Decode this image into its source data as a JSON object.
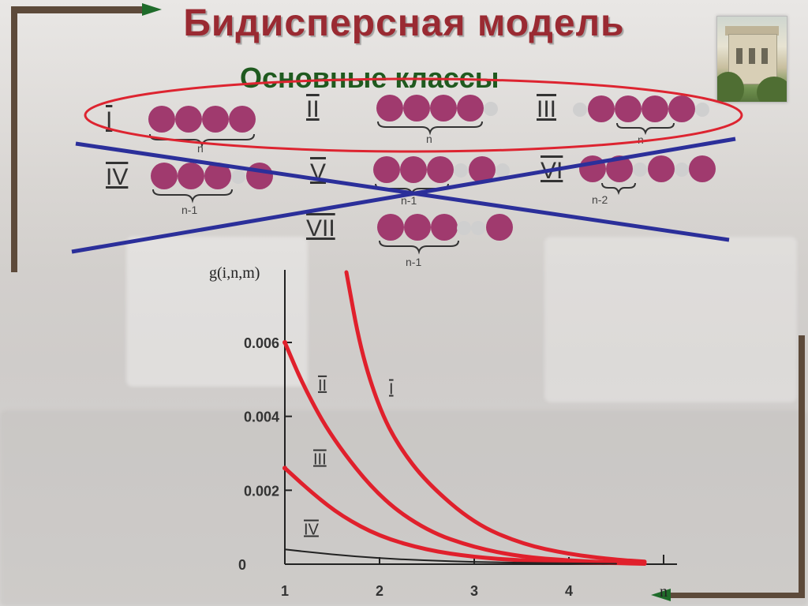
{
  "slide": {
    "title": "Бидисперсная модель",
    "subtitle": "Основные классы"
  },
  "molecules": {
    "classes": [
      {
        "label": "I",
        "chain": "n"
      },
      {
        "label": "II",
        "chain": "n"
      },
      {
        "label": "III",
        "chain": "n"
      },
      {
        "label": "IV",
        "chain": "n-1"
      },
      {
        "label": "V",
        "chain": "n-1"
      },
      {
        "label": "VI",
        "chain": "n-2"
      },
      {
        "label": "VII",
        "chain": "n-1"
      }
    ],
    "colors": {
      "bead": "#a03a6e",
      "small_bead": "#cfcfcf",
      "ellipse": "#dd2430",
      "cross_lines": "#2b2f9a"
    }
  },
  "chart_data": {
    "type": "line",
    "ylabel": "g(i,n,m)",
    "xlabel": "n",
    "x_ticks": [
      "1",
      "2",
      "3",
      "4"
    ],
    "y_ticks": [
      "0",
      "0.002",
      "0.004",
      "0.006"
    ],
    "xlim": [
      1,
      5
    ],
    "ylim": [
      0,
      0.0075
    ],
    "series": [
      {
        "name": "I",
        "color": "#e0202c",
        "x": [
          1.65,
          1.8,
          2.0,
          2.2,
          2.5,
          3.0,
          3.5,
          4.0,
          4.5,
          4.8
        ],
        "y": [
          0.0079,
          0.0058,
          0.0042,
          0.0032,
          0.0022,
          0.0011,
          0.00055,
          0.00027,
          0.00012,
          7e-05
        ]
      },
      {
        "name": "II",
        "color": "#e0202c",
        "x": [
          1.0,
          1.2,
          1.5,
          2.0,
          2.5,
          3.0,
          3.5,
          4.0,
          4.5,
          4.8
        ],
        "y": [
          0.006,
          0.0048,
          0.0034,
          0.0018,
          0.0009,
          0.00045,
          0.0002,
          0.0001,
          4e-05,
          2e-05
        ]
      },
      {
        "name": "III",
        "color": "#e0202c",
        "x": [
          1.0,
          1.3,
          1.6,
          2.0,
          2.5,
          3.0,
          3.5,
          4.0,
          4.5,
          4.8
        ],
        "y": [
          0.0026,
          0.0019,
          0.0013,
          0.00075,
          0.00038,
          0.00019,
          0.0001,
          5e-05,
          3e-05,
          1e-05
        ]
      },
      {
        "name": "IV",
        "color": "#222222",
        "x": [
          1.0,
          1.5,
          2.0,
          2.5,
          3.0,
          3.5,
          4.0,
          4.5
        ],
        "y": [
          0.0004,
          0.00026,
          0.00016,
          0.0001,
          6e-05,
          4e-05,
          2e-05,
          1e-05
        ]
      }
    ]
  }
}
